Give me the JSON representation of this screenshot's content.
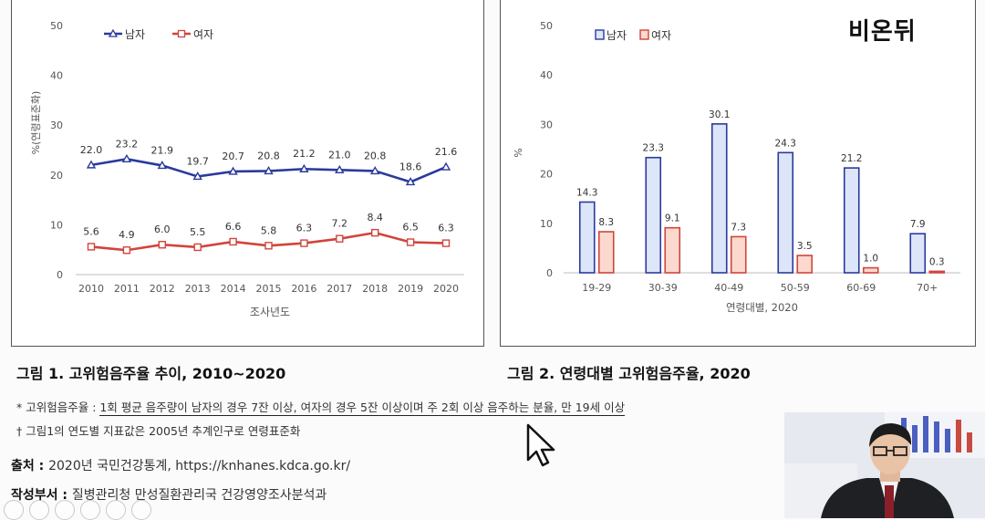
{
  "logo": {
    "text": "비온뒤"
  },
  "chart_data": [
    {
      "type": "line",
      "x": [
        "2010",
        "2011",
        "2012",
        "2013",
        "2014",
        "2015",
        "2016",
        "2017",
        "2018",
        "2019",
        "2020"
      ],
      "series": [
        {
          "name": "남자",
          "values": [
            22.0,
            23.2,
            21.9,
            19.7,
            20.7,
            20.8,
            21.2,
            21.0,
            20.8,
            18.6,
            21.6
          ],
          "color": "#2a3a9c"
        },
        {
          "name": "여자",
          "values": [
            5.6,
            4.9,
            6.0,
            5.5,
            6.6,
            5.8,
            6.3,
            7.2,
            8.4,
            6.5,
            6.3
          ],
          "color": "#d0453c"
        }
      ],
      "labels_male": [
        "22.0",
        "23.2",
        "21.9",
        "19.7",
        "20.7",
        "20.8",
        "21.2",
        "21.0",
        "20.8",
        "18.6",
        "21.6"
      ],
      "labels_female": [
        "5.6",
        "4.9",
        "6.0",
        "5.5",
        "6.6",
        "5.8",
        "6.3",
        "7.2",
        "8.4",
        "6.5",
        "6.3"
      ],
      "yticks": [
        "0",
        "10",
        "20",
        "30",
        "40",
        "50"
      ],
      "ylim": [
        0,
        50
      ],
      "ylabel": "%(연령표준화)",
      "xlabel": "조사년도",
      "legend": "top-left"
    },
    {
      "type": "bar",
      "categories": [
        "19-29",
        "30-39",
        "40-49",
        "50-59",
        "60-69",
        "70+"
      ],
      "series": [
        {
          "name": "남자",
          "values": [
            14.3,
            23.3,
            30.1,
            24.3,
            21.2,
            7.9
          ],
          "fill": "#dde6f8",
          "stroke": "#2a3a9c"
        },
        {
          "name": "여자",
          "values": [
            8.3,
            9.1,
            7.3,
            3.5,
            1.0,
            0.3
          ],
          "fill": "#fbd9cf",
          "stroke": "#d0453c"
        }
      ],
      "labels_male": [
        "14.3",
        "23.3",
        "30.1",
        "24.3",
        "21.2",
        "7.9"
      ],
      "labels_female": [
        "8.3",
        "9.1",
        "7.3",
        "3.5",
        "1.0",
        "0.3"
      ],
      "yticks": [
        "0",
        "10",
        "20",
        "30",
        "40",
        "50"
      ],
      "ylim": [
        0,
        50
      ],
      "ylabel": "%",
      "xlabel": "연령대별, 2020",
      "legend": "top-left"
    }
  ],
  "captions": {
    "fig1": "그림 1. 고위험음주율 추이, 2010~2020",
    "fig2": "그림 2. 연령대별 고위험음주율, 2020"
  },
  "notes": {
    "note1_prefix": "* 고위험음주율 : ",
    "note1_body": "1회 평균 음주량이 남자의 경우 7잔 이상, 여자의 경우 5잔 이상이며 주 2회 이상 음주하는 분율, 만 19세 이상",
    "note2": "† 그림1의 연도별 지표값은 2005년 추계인구로 연령표준화"
  },
  "source": {
    "label1": "출처 : ",
    "value1": "2020년 국민건강통계, https://knhanes.kdca.go.kr/",
    "label2": "작성부서 : ",
    "value2": "질병관리청 만성질환관리국 건강영양조사분석과"
  }
}
